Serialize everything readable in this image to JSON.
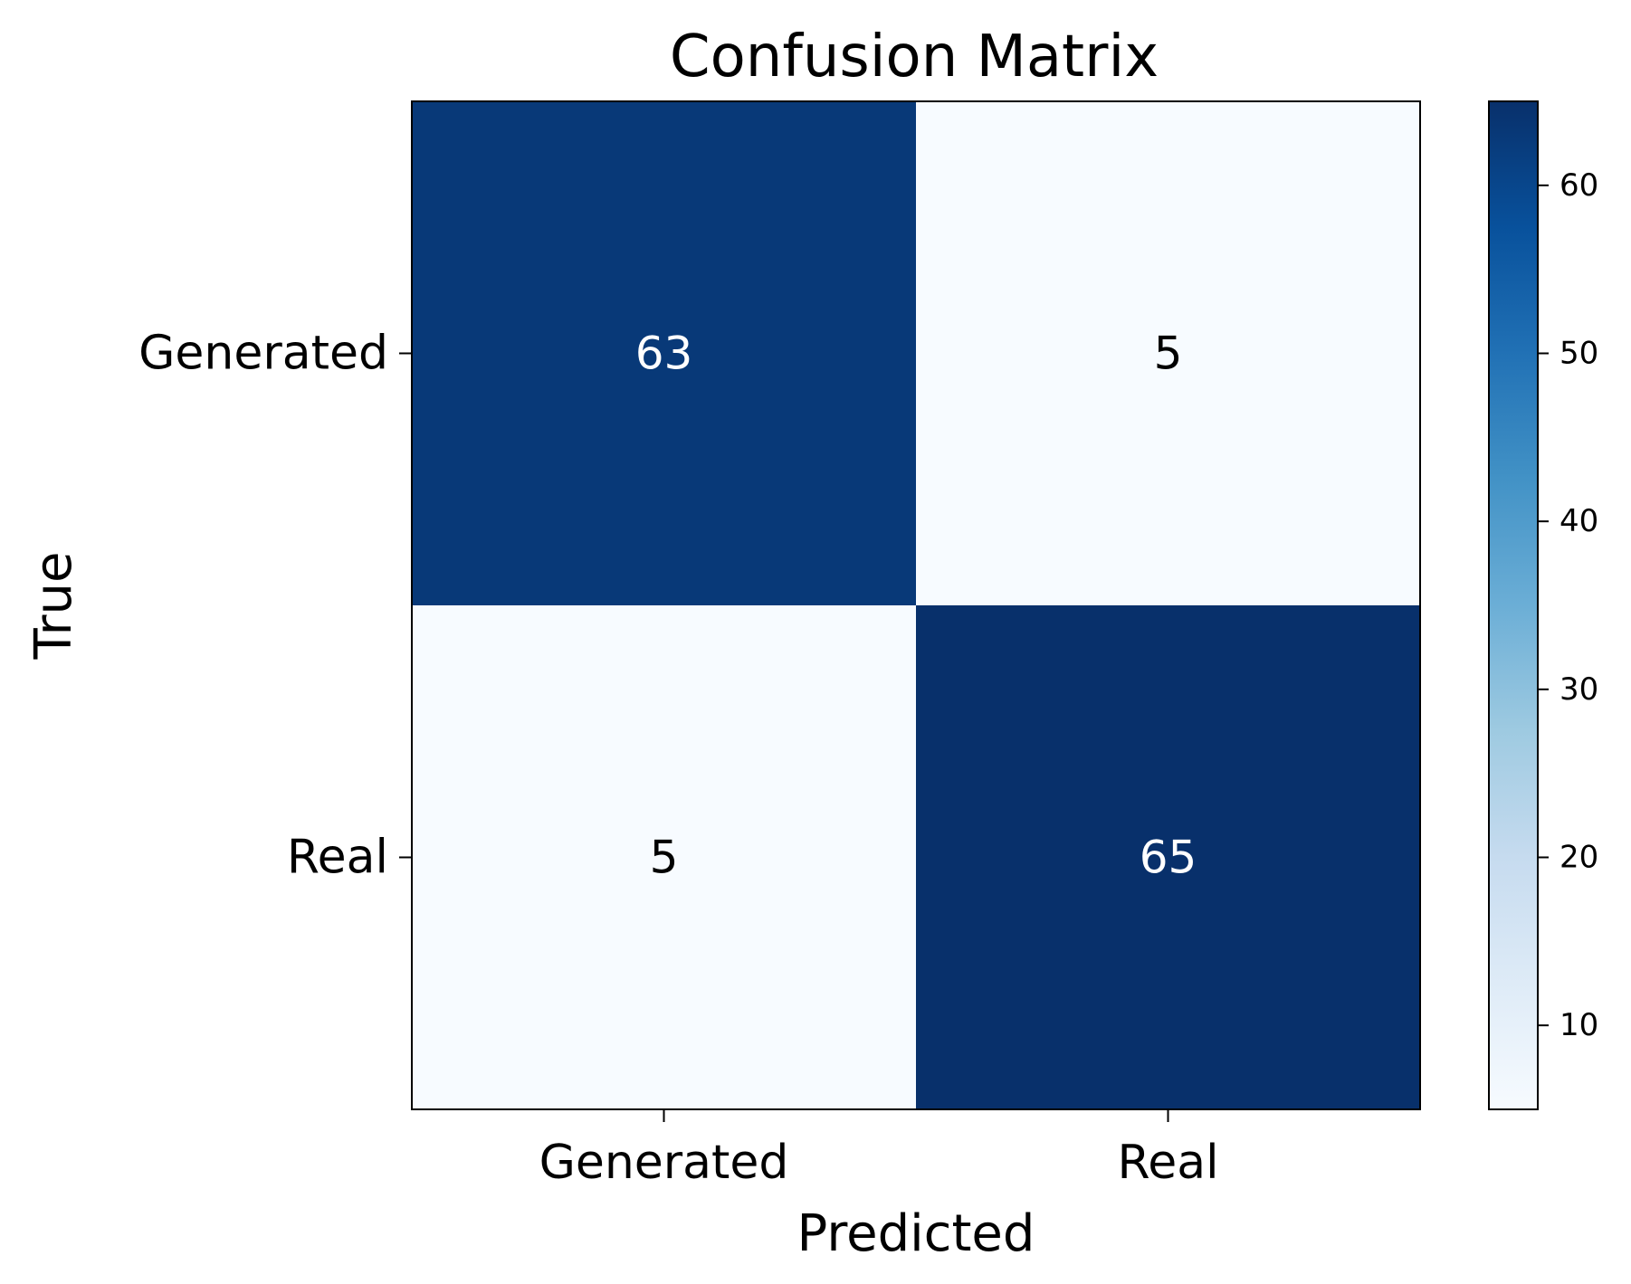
{
  "chart_data": {
    "type": "heatmap",
    "title": "Confusion Matrix",
    "xlabel": "Predicted",
    "ylabel": "True",
    "x_categories": [
      "Generated",
      "Real"
    ],
    "y_categories": [
      "Generated",
      "Real"
    ],
    "values": [
      [
        63,
        5
      ],
      [
        5,
        65
      ]
    ],
    "colormap": "Blues",
    "colorbar": {
      "range": [
        5,
        65
      ],
      "ticks": [
        10,
        20,
        30,
        40,
        50,
        60
      ]
    },
    "colors": {
      "low": "#f7fbff",
      "high": "#08306b",
      "text_on_dark": "#ffffff",
      "text_on_light": "#000000"
    }
  }
}
